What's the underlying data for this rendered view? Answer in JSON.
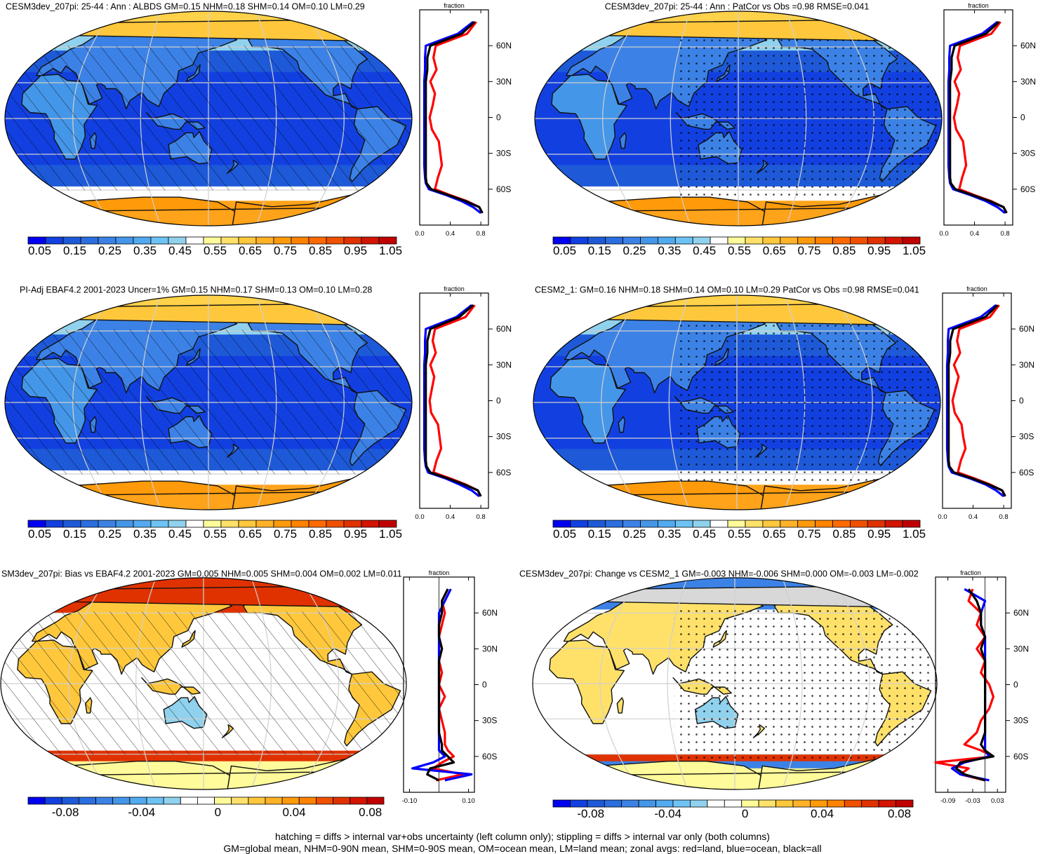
{
  "footer": {
    "line1": "hatching = diffs > internal var+obs uncertainty (left column only); stippling = diffs > internal var only (both columns)",
    "line2": "GM=global mean, NHM=0-90N mean, SHM=0-90S mean, OM=ocean mean, LM=land mean; zonal avgs: red=land, blue=ocean, black=all"
  },
  "colors": {
    "land_zonal": "#ff0000",
    "ocean_zonal": "#0000ff",
    "all_zonal": "#000000",
    "abs_scale": [
      "#0000f0",
      "#1240e0",
      "#1e5ad8",
      "#2a6ee0",
      "#3c82e6",
      "#4496e8",
      "#52aaf0",
      "#6ec3f5",
      "#90d2ee",
      "#ffffff",
      "#fffa9a",
      "#ffe16a",
      "#ffc83c",
      "#ffb228",
      "#ff9a0a",
      "#ff8200",
      "#ff6a00",
      "#f05000",
      "#e03200",
      "#d21400",
      "#c00000"
    ],
    "diff_scale": [
      "#0000f0",
      "#1240e0",
      "#1e5ad8",
      "#2a6ee0",
      "#3c82e6",
      "#4496e8",
      "#52aaf0",
      "#6ec3f5",
      "#90d2ee",
      "#ffffff",
      "#ffffff",
      "#fffa9a",
      "#ffe16a",
      "#ffc83c",
      "#ffb228",
      "#ff9a0a",
      "#ff8200",
      "#f05000",
      "#e03200",
      "#d21400",
      "#c00000"
    ]
  },
  "chart_data": [
    {
      "type": "heatmap",
      "title": "CESM3dev_207pi: 25-44 : Ann : ALBDS GM=0.15 NHM=0.18 SHM=0.14 OM=0.10 LM=0.29",
      "map_style": "abs",
      "hatched": true,
      "colorbar": {
        "labels": [
          "0.05",
          "0.15",
          "0.25",
          "0.35",
          "0.45",
          "0.55",
          "0.65",
          "0.75",
          "0.85",
          "0.95",
          "1.05"
        ]
      },
      "zonal": {
        "xlabel": "fraction",
        "xticklabels": [
          "0.0",
          "0.4",
          "0.8"
        ],
        "xlim": [
          0,
          0.9
        ],
        "yticklabels": [
          "60N",
          "30N",
          "0",
          "30S",
          "60S"
        ],
        "ylim": [
          -90,
          90
        ],
        "lat": [
          80,
          70,
          60,
          50,
          40,
          30,
          20,
          10,
          0,
          -10,
          -20,
          -30,
          -40,
          -50,
          -55,
          -60,
          -65,
          -70,
          -75,
          -80
        ],
        "series": [
          {
            "name": "land",
            "values": [
              0.74,
              0.62,
              0.21,
              0.18,
              0.22,
              0.14,
              0.2,
              0.17,
              0.13,
              0.16,
              0.25,
              0.27,
              0.29,
              0.24,
              0.22,
              0.2,
              0.4,
              0.62,
              0.78,
              0.82
            ]
          },
          {
            "name": "ocean",
            "values": [
              0.7,
              0.5,
              0.08,
              0.07,
              0.07,
              0.06,
              0.06,
              0.06,
              0.06,
              0.06,
              0.06,
              0.06,
              0.06,
              0.07,
              0.08,
              0.12,
              0.35,
              0.55,
              0.7,
              0.8
            ]
          },
          {
            "name": "all",
            "values": [
              0.72,
              0.55,
              0.14,
              0.1,
              0.1,
              0.08,
              0.08,
              0.08,
              0.08,
              0.08,
              0.08,
              0.08,
              0.08,
              0.08,
              0.09,
              0.15,
              0.38,
              0.6,
              0.78,
              0.82
            ]
          }
        ]
      }
    },
    {
      "type": "heatmap",
      "title": "CESM3dev_207pi: 25-44 : Ann : PatCor vs Obs =0.98 RMSE=0.041",
      "map_style": "abs",
      "hatched": false,
      "colorbar": {
        "labels": [
          "0.05",
          "0.15",
          "0.25",
          "0.35",
          "0.45",
          "0.55",
          "0.65",
          "0.75",
          "0.85",
          "0.95",
          "1.05"
        ]
      },
      "zonal": {
        "xlabel": "fraction",
        "xticklabels": [
          "0.0",
          "0.4",
          "0.8"
        ],
        "xlim": [
          0,
          0.9
        ],
        "yticklabels": [
          "60N",
          "30N",
          "0",
          "30S",
          "60S"
        ],
        "ylim": [
          -90,
          90
        ],
        "lat": [
          80,
          70,
          60,
          50,
          40,
          30,
          20,
          10,
          0,
          -10,
          -20,
          -30,
          -40,
          -50,
          -55,
          -60,
          -65,
          -70,
          -75,
          -80
        ],
        "series": [
          {
            "name": "land",
            "values": [
              0.74,
              0.62,
              0.21,
              0.18,
              0.22,
              0.14,
              0.2,
              0.17,
              0.13,
              0.16,
              0.25,
              0.27,
              0.29,
              0.24,
              0.22,
              0.2,
              0.4,
              0.62,
              0.78,
              0.82
            ]
          },
          {
            "name": "ocean",
            "values": [
              0.7,
              0.5,
              0.08,
              0.07,
              0.07,
              0.06,
              0.06,
              0.06,
              0.06,
              0.06,
              0.06,
              0.06,
              0.06,
              0.07,
              0.08,
              0.12,
              0.35,
              0.55,
              0.7,
              0.8
            ]
          },
          {
            "name": "all",
            "values": [
              0.72,
              0.55,
              0.14,
              0.1,
              0.1,
              0.08,
              0.08,
              0.08,
              0.08,
              0.08,
              0.08,
              0.08,
              0.08,
              0.08,
              0.09,
              0.15,
              0.38,
              0.6,
              0.78,
              0.82
            ]
          }
        ]
      }
    },
    {
      "type": "heatmap",
      "title": "PI-Adj EBAF4.2 2001-2023 Uncer=1% GM=0.15 NHM=0.17 SHM=0.13 OM=0.10 LM=0.28",
      "map_style": "abs",
      "hatched": true,
      "colorbar": {
        "labels": [
          "0.05",
          "0.15",
          "0.25",
          "0.35",
          "0.45",
          "0.55",
          "0.65",
          "0.75",
          "0.85",
          "0.95",
          "1.05"
        ]
      },
      "zonal": {
        "xlabel": "fraction",
        "xticklabels": [
          "0.0",
          "0.4",
          "0.8"
        ],
        "xlim": [
          0,
          0.9
        ],
        "yticklabels": [
          "60N",
          "30N",
          "0",
          "30S",
          "60S"
        ],
        "ylim": [
          -90,
          90
        ],
        "lat": [
          80,
          70,
          60,
          50,
          40,
          30,
          20,
          10,
          0,
          -10,
          -20,
          -30,
          -40,
          -50,
          -55,
          -60,
          -65,
          -70,
          -75,
          -80
        ],
        "series": [
          {
            "name": "land",
            "values": [
              0.72,
              0.6,
              0.2,
              0.17,
              0.21,
              0.14,
              0.19,
              0.16,
              0.13,
              0.15,
              0.24,
              0.26,
              0.28,
              0.22,
              0.2,
              0.18,
              0.4,
              0.6,
              0.76,
              0.8
            ]
          },
          {
            "name": "ocean",
            "values": [
              0.68,
              0.48,
              0.08,
              0.07,
              0.07,
              0.06,
              0.06,
              0.06,
              0.06,
              0.06,
              0.06,
              0.06,
              0.06,
              0.07,
              0.08,
              0.11,
              0.34,
              0.52,
              0.68,
              0.78
            ]
          },
          {
            "name": "all",
            "values": [
              0.7,
              0.52,
              0.14,
              0.1,
              0.1,
              0.08,
              0.08,
              0.08,
              0.08,
              0.08,
              0.08,
              0.08,
              0.08,
              0.08,
              0.09,
              0.14,
              0.37,
              0.58,
              0.76,
              0.8
            ]
          }
        ]
      }
    },
    {
      "type": "heatmap",
      "title": "CESM2_1: GM=0.16 NHM=0.18 SHM=0.14 OM=0.10 LM=0.29 PatCor vs Obs =0.98 RMSE=0.041",
      "map_style": "abs",
      "hatched": false,
      "colorbar": {
        "labels": [
          "0.05",
          "0.15",
          "0.25",
          "0.35",
          "0.45",
          "0.55",
          "0.65",
          "0.75",
          "0.85",
          "0.95",
          "1.05"
        ]
      },
      "zonal": {
        "xlabel": "fraction",
        "xticklabels": [
          "0.0",
          "0.4",
          "0.8"
        ],
        "xlim": [
          0,
          0.9
        ],
        "yticklabels": [
          "60N",
          "30N",
          "0",
          "30S",
          "60S"
        ],
        "ylim": [
          -90,
          90
        ],
        "lat": [
          80,
          70,
          60,
          50,
          40,
          30,
          20,
          10,
          0,
          -10,
          -20,
          -30,
          -40,
          -50,
          -55,
          -60,
          -65,
          -70,
          -75,
          -80
        ],
        "series": [
          {
            "name": "land",
            "values": [
              0.74,
              0.62,
              0.22,
              0.19,
              0.23,
              0.15,
              0.21,
              0.17,
              0.13,
              0.16,
              0.25,
              0.27,
              0.3,
              0.24,
              0.22,
              0.2,
              0.42,
              0.62,
              0.78,
              0.82
            ]
          },
          {
            "name": "ocean",
            "values": [
              0.7,
              0.5,
              0.08,
              0.07,
              0.07,
              0.06,
              0.06,
              0.06,
              0.06,
              0.06,
              0.06,
              0.06,
              0.06,
              0.07,
              0.08,
              0.12,
              0.36,
              0.56,
              0.7,
              0.8
            ]
          },
          {
            "name": "all",
            "values": [
              0.72,
              0.56,
              0.14,
              0.1,
              0.1,
              0.08,
              0.08,
              0.08,
              0.08,
              0.08,
              0.08,
              0.08,
              0.08,
              0.08,
              0.09,
              0.15,
              0.39,
              0.6,
              0.78,
              0.82
            ]
          }
        ]
      }
    },
    {
      "type": "heatmap",
      "title": "SM3dev_207pi: Bias vs EBAF4.2 2001-2023 GM=0.005 NHM=0.005 SHM=0.004 OM=0.002 LM=0.011",
      "map_style": "bias",
      "hatched": true,
      "colorbar": {
        "labels": [
          "-0.08",
          "-0.04",
          "0",
          "0.04",
          "0.08"
        ]
      },
      "zonal": {
        "xlabel": "fraction",
        "xticklabels": [
          "-0.10",
          "0.10"
        ],
        "xlim": [
          -0.12,
          0.12
        ],
        "yticklabels": [
          "60N",
          "30N",
          "0",
          "30S",
          "60S"
        ],
        "ylim": [
          -90,
          90
        ],
        "lat": [
          80,
          70,
          60,
          50,
          40,
          30,
          20,
          10,
          0,
          -10,
          -20,
          -30,
          -40,
          -50,
          -55,
          -60,
          -65,
          -70,
          -75,
          -80
        ],
        "series": [
          {
            "name": "land",
            "values": [
              0.03,
              0.01,
              0.02,
              0.01,
              0.0,
              0.01,
              0.0,
              0.01,
              0.0,
              0.02,
              0.0,
              0.01,
              0.02,
              0.02,
              0.03,
              0.05,
              0.01,
              -0.02,
              0.08,
              -0.01
            ]
          },
          {
            "name": "ocean",
            "values": [
              0.04,
              0.02,
              0.0,
              0.0,
              0.0,
              0.0,
              0.0,
              0.0,
              0.0,
              0.0,
              0.0,
              0.0,
              0.0,
              0.0,
              0.0,
              0.02,
              -0.02,
              -0.09,
              0.11,
              0.02
            ]
          },
          {
            "name": "all",
            "values": [
              0.03,
              0.01,
              0.01,
              0.0,
              0.0,
              0.01,
              0.0,
              0.0,
              0.0,
              0.0,
              0.0,
              0.0,
              0.0,
              0.01,
              0.01,
              0.03,
              0.05,
              -0.03,
              -0.04,
              0.0
            ]
          }
        ]
      }
    },
    {
      "type": "heatmap",
      "title": "CESM3dev_207pi: Change vs CESM2_1 GM=-0.003 NHM=-0.006 SHM=0.000 OM=-0.003 LM=-0.002",
      "map_style": "change",
      "hatched": false,
      "colorbar": {
        "labels": [
          "-0.08",
          "-0.04",
          "0",
          "0.04",
          "0.08"
        ]
      },
      "zonal": {
        "xlabel": "fraction",
        "xticklabels": [
          "-0.09",
          "-0.03",
          "0.03"
        ],
        "xlim": [
          -0.12,
          0.05
        ],
        "yticklabels": [
          "60N",
          "30N",
          "0",
          "30S",
          "60S"
        ],
        "ylim": [
          -90,
          90
        ],
        "lat": [
          80,
          70,
          60,
          50,
          40,
          30,
          20,
          10,
          0,
          -10,
          -20,
          -30,
          -40,
          -50,
          -55,
          -60,
          -65,
          -70,
          -75,
          -80
        ],
        "series": [
          {
            "name": "land",
            "values": [
              -0.03,
              -0.04,
              -0.01,
              -0.02,
              0.0,
              -0.02,
              0.0,
              -0.01,
              0.01,
              0.02,
              0.01,
              -0.01,
              -0.02,
              -0.05,
              -0.01,
              0.02,
              -0.12,
              -0.04,
              -0.06,
              0.0
            ]
          },
          {
            "name": "ocean",
            "values": [
              -0.05,
              0.0,
              -0.01,
              -0.01,
              0.0,
              0.0,
              0.0,
              0.0,
              0.0,
              0.0,
              0.0,
              0.0,
              0.0,
              0.0,
              0.0,
              0.01,
              -0.05,
              -0.08,
              -0.06,
              0.01
            ]
          },
          {
            "name": "all",
            "values": [
              -0.04,
              -0.02,
              -0.01,
              -0.01,
              0.0,
              -0.01,
              0.0,
              0.0,
              0.0,
              0.0,
              0.0,
              0.0,
              0.0,
              -0.01,
              0.0,
              0.02,
              -0.06,
              -0.07,
              -0.05,
              0.0
            ]
          }
        ]
      }
    }
  ]
}
